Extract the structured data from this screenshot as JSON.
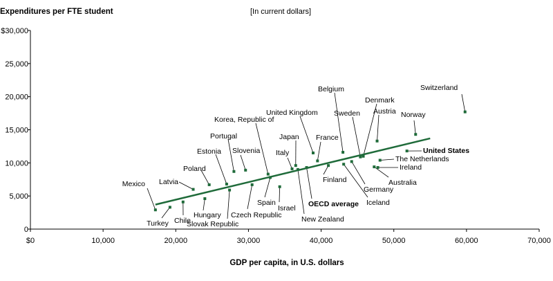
{
  "chart_data": {
    "type": "scatter",
    "title": "Expenditures per FTE student",
    "subtitle": "[In current dollars]",
    "xlabel": "GDP per capita, in U.S. dollars",
    "ylabel": "Expenditures per FTE student",
    "xlim": [
      0,
      70000
    ],
    "ylim": [
      0,
      30000
    ],
    "x_ticks": [
      0,
      10000,
      20000,
      30000,
      40000,
      50000,
      60000,
      70000
    ],
    "x_tick_labels": [
      "$0",
      "10,000",
      "20,000",
      "30,000",
      "40,000",
      "50,000",
      "60,000",
      "70,000"
    ],
    "y_ticks": [
      0,
      5000,
      10000,
      15000,
      20000,
      25000,
      30000
    ],
    "y_tick_labels": [
      "0",
      "5,000",
      "10,000",
      "15,000",
      "20,000",
      "25,000",
      "$30,000"
    ],
    "marker_color": "#1f6b3a",
    "trend_line": {
      "x": [
        17200,
        55000
      ],
      "y": [
        3700,
        13700
      ]
    },
    "points": [
      {
        "name": "Mexico",
        "x": 17200,
        "y": 2900
      },
      {
        "name": "Turkey",
        "x": 19200,
        "y": 3300
      },
      {
        "name": "Chile",
        "x": 21000,
        "y": 4100
      },
      {
        "name": "Latvia",
        "x": 22400,
        "y": 6000
      },
      {
        "name": "Hungary",
        "x": 24000,
        "y": 4600
      },
      {
        "name": "Poland",
        "x": 24600,
        "y": 6700
      },
      {
        "name": "Estonia",
        "x": 27000,
        "y": 6800
      },
      {
        "name": "Slovak Republic",
        "x": 27400,
        "y": 5900
      },
      {
        "name": "Portugal",
        "x": 28000,
        "y": 8700
      },
      {
        "name": "Slovenia",
        "x": 29600,
        "y": 8900
      },
      {
        "name": "Czech Republic",
        "x": 30500,
        "y": 6700
      },
      {
        "name": "Korea, Republic of",
        "x": 32700,
        "y": 8300
      },
      {
        "name": "Spain",
        "x": 33000,
        "y": 7800
      },
      {
        "name": "Israel",
        "x": 34300,
        "y": 6400
      },
      {
        "name": "Italy",
        "x": 36000,
        "y": 9100
      },
      {
        "name": "Japan",
        "x": 36500,
        "y": 9600
      },
      {
        "name": "New Zealand",
        "x": 36800,
        "y": 9000
      },
      {
        "name": "OECD average",
        "x": 38000,
        "y": 9300
      },
      {
        "name": "United Kingdom",
        "x": 38900,
        "y": 11500
      },
      {
        "name": "France",
        "x": 39500,
        "y": 10300
      },
      {
        "name": "Finland",
        "x": 41000,
        "y": 9600
      },
      {
        "name": "Belgium",
        "x": 43000,
        "y": 11600
      },
      {
        "name": "Iceland",
        "x": 43100,
        "y": 9800
      },
      {
        "name": "Germany",
        "x": 44200,
        "y": 10200
      },
      {
        "name": "Sweden",
        "x": 45400,
        "y": 10900
      },
      {
        "name": "Denmark",
        "x": 45800,
        "y": 11000
      },
      {
        "name": "Australia",
        "x": 47300,
        "y": 9400
      },
      {
        "name": "Austria",
        "x": 47700,
        "y": 13300
      },
      {
        "name": "Ireland",
        "x": 47800,
        "y": 9300
      },
      {
        "name": "The Netherlands",
        "x": 48100,
        "y": 10400
      },
      {
        "name": "United States",
        "x": 51800,
        "y": 11800
      },
      {
        "name": "Norway",
        "x": 53000,
        "y": 14300
      },
      {
        "name": "Switzerland",
        "x": 59800,
        "y": 17700
      }
    ]
  }
}
